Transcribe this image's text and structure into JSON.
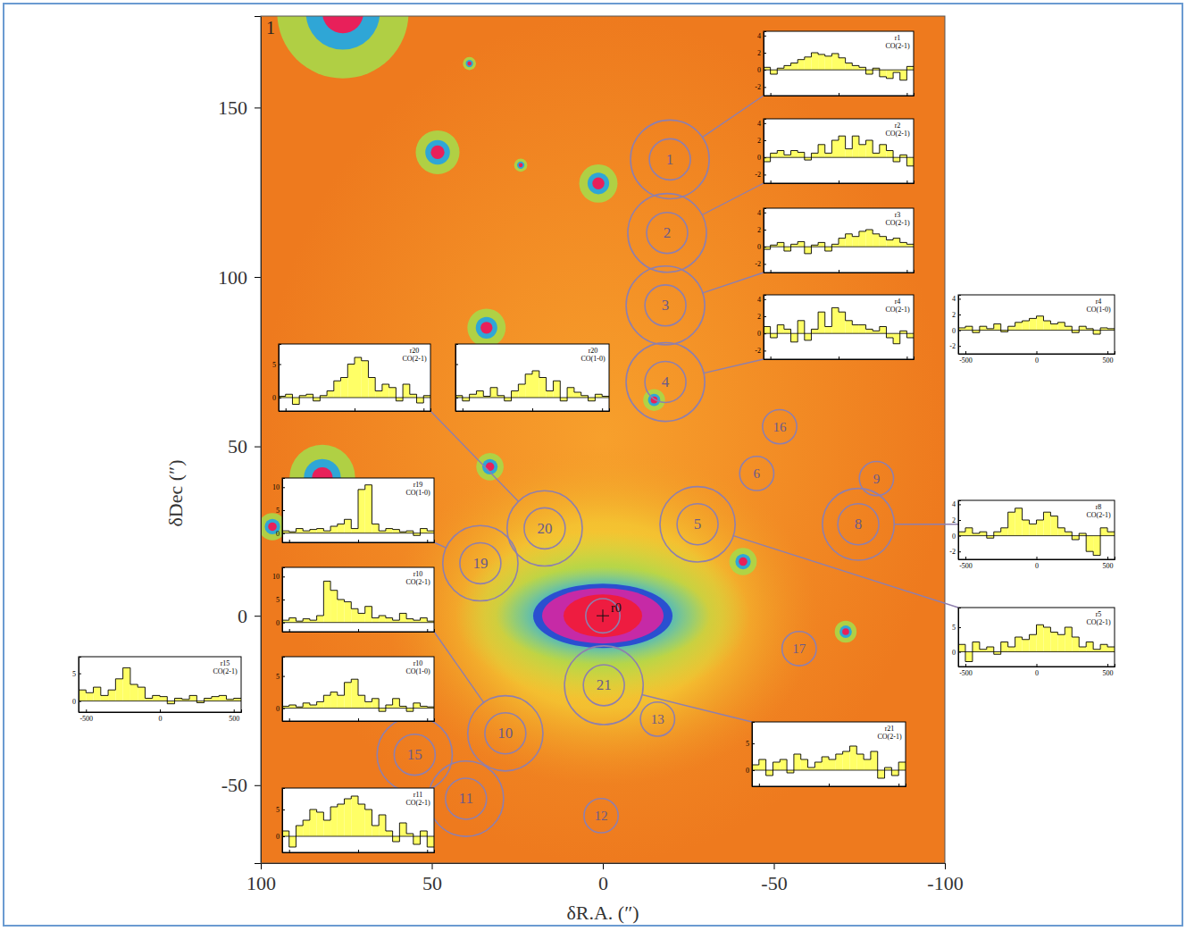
{
  "chart_data": [
    {
      "type": "map",
      "title": "1",
      "xlabel": "δR.A. (″)",
      "ylabel": "δDec (″)",
      "xlim": [
        100,
        -100
      ],
      "ylim": [
        -73,
        177
      ],
      "xticks": [
        100,
        50,
        0,
        -50,
        -100
      ],
      "yticks": [
        150,
        100,
        50,
        0,
        -50
      ],
      "color": "#8e7fae",
      "regions": [
        {
          "label": "r0",
          "x": 0,
          "y": 0,
          "radius": 5
        },
        {
          "label": "1",
          "x": -19.6,
          "y": 134.7,
          "radius": 6,
          "outer_radius": 11.5
        },
        {
          "label": "2",
          "x": -18.8,
          "y": 113,
          "radius": 6,
          "outer_radius": 11.5
        },
        {
          "label": "3",
          "x": -18.3,
          "y": 91.6,
          "radius": 6,
          "outer_radius": 11.5
        },
        {
          "label": "4",
          "x": -18.3,
          "y": 69,
          "radius": 6,
          "outer_radius": 11.5
        },
        {
          "label": "5",
          "x": -27.7,
          "y": 27,
          "radius": 6,
          "outer_radius": 11
        },
        {
          "label": "6",
          "x": -45,
          "y": 42,
          "radius": 5
        },
        {
          "label": "8",
          "x": -74.7,
          "y": 27,
          "radius": 6,
          "outer_radius": 10.5
        },
        {
          "label": "9",
          "x": -80,
          "y": 40.5,
          "radius": 5
        },
        {
          "label": "10",
          "x": 28.5,
          "y": -34.7,
          "radius": 6,
          "outer_radius": 11
        },
        {
          "label": "11",
          "x": 40,
          "y": -54,
          "radius": 6,
          "outer_radius": 11
        },
        {
          "label": "12",
          "x": 0.5,
          "y": -59,
          "radius": 5
        },
        {
          "label": "13",
          "x": -16,
          "y": -30.5,
          "radius": 5
        },
        {
          "label": "15",
          "x": 55,
          "y": -41,
          "radius": 6,
          "outer_radius": 11
        },
        {
          "label": "16",
          "x": -51.7,
          "y": 55.8,
          "radius": 5
        },
        {
          "label": "17",
          "x": -57.4,
          "y": -9.7,
          "radius": 5
        },
        {
          "label": "19",
          "x": 35.8,
          "y": 15.5,
          "radius": 6,
          "outer_radius": 11
        },
        {
          "label": "20",
          "x": 17,
          "y": 25.8,
          "radius": 6,
          "outer_radius": 11
        },
        {
          "label": "21",
          "x": -0.3,
          "y": -20.5,
          "radius": 6,
          "outer_radius": 11.5
        }
      ],
      "sources": [
        {
          "x": 48.3,
          "y": 136.8,
          "size": 4
        },
        {
          "x": 1.3,
          "y": 127.6,
          "size": 3.5
        },
        {
          "x": 34,
          "y": 85,
          "size": 3.5
        },
        {
          "x": 82,
          "y": 40.8,
          "size": 6
        },
        {
          "x": 33,
          "y": 44,
          "size": 2.5
        },
        {
          "x": -41,
          "y": 16,
          "size": 2.5
        },
        {
          "x": -71,
          "y": -4.7,
          "size": 2
        },
        {
          "x": -15,
          "y": 63.7,
          "size": 2
        },
        {
          "x": 96.6,
          "y": 26.3,
          "size": 2.5
        },
        {
          "x": 76,
          "y": 178,
          "size": 12
        },
        {
          "x": 24,
          "y": 133,
          "size": 1.2
        },
        {
          "x": 39,
          "y": 163,
          "size": 1.2
        }
      ]
    },
    {
      "type": "step",
      "title": "r1",
      "subtitle": "CO(2-1)",
      "color": "#ffff66",
      "tick_labels": "y",
      "xlim": [
        -550,
        550
      ],
      "xticks": [
        -500,
        0,
        500
      ],
      "ylim": [
        -3,
        4.5
      ],
      "yticks": [
        -2,
        0,
        2,
        4
      ],
      "x": [
        -525,
        -475,
        -425,
        -375,
        -325,
        -275,
        -225,
        -175,
        -125,
        -75,
        -25,
        25,
        75,
        125,
        175,
        225,
        275,
        325,
        375,
        425,
        475,
        525
      ],
      "values": [
        0.3,
        -0.5,
        0.2,
        0.5,
        0.8,
        1.2,
        1.5,
        2.0,
        1.8,
        1.6,
        1.9,
        1.4,
        0.8,
        0.5,
        0.3,
        -0.5,
        0.2,
        -0.8,
        -1.0,
        -0.3,
        -1.2,
        0.4
      ]
    },
    {
      "type": "step",
      "title": "r2",
      "subtitle": "CO(2-1)",
      "color": "#ffff66",
      "tick_labels": "y",
      "xlim": [
        -550,
        550
      ],
      "xticks": [
        -500,
        0,
        500
      ],
      "ylim": [
        -3,
        4.5
      ],
      "yticks": [
        -2,
        0,
        2,
        4
      ],
      "x": [
        -525,
        -475,
        -425,
        -375,
        -325,
        -275,
        -225,
        -175,
        -125,
        -75,
        -25,
        25,
        75,
        125,
        175,
        225,
        275,
        325,
        375,
        425,
        475,
        525
      ],
      "values": [
        -0.5,
        0.5,
        0.8,
        0.3,
        0.8,
        0.6,
        -0.3,
        0.5,
        1.5,
        0.5,
        2.0,
        2.5,
        1.0,
        2.5,
        1.5,
        2.0,
        0.5,
        1.5,
        0.8,
        -0.5,
        0.3,
        -1.0
      ]
    },
    {
      "type": "step",
      "title": "r3",
      "subtitle": "CO(2-1)",
      "color": "#ffff66",
      "tick_labels": "y",
      "xlim": [
        -550,
        550
      ],
      "xticks": [
        -500,
        0,
        500
      ],
      "ylim": [
        -3,
        4.5
      ],
      "yticks": [
        -2,
        0,
        2,
        4
      ],
      "x": [
        -525,
        -475,
        -425,
        -375,
        -325,
        -275,
        -225,
        -175,
        -125,
        -75,
        -25,
        25,
        75,
        125,
        175,
        225,
        275,
        325,
        375,
        425,
        475,
        525
      ],
      "values": [
        -0.3,
        0.2,
        0.5,
        -0.5,
        0.3,
        0.6,
        -0.8,
        0.2,
        0.5,
        -0.5,
        0.3,
        1.0,
        1.5,
        1.2,
        1.8,
        2.0,
        1.5,
        1.2,
        0.8,
        1.0,
        0.5,
        0.3
      ]
    },
    {
      "type": "step",
      "title": "r4",
      "subtitle": "CO(2-1)",
      "color": "#ffff66",
      "tick_labels": "y",
      "xlim": [
        -550,
        550
      ],
      "xticks": [
        -500,
        0,
        500
      ],
      "ylim": [
        -3,
        4.5
      ],
      "yticks": [
        -2,
        0,
        2,
        4
      ],
      "x": [
        -525,
        -475,
        -425,
        -375,
        -325,
        -275,
        -225,
        -175,
        -125,
        -75,
        -25,
        25,
        75,
        125,
        175,
        225,
        275,
        325,
        375,
        425,
        475,
        525
      ],
      "values": [
        0.8,
        -0.5,
        1.0,
        0.5,
        -1.0,
        1.5,
        -0.8,
        0.5,
        2.5,
        0.8,
        3.0,
        2.5,
        1.5,
        1.0,
        1.0,
        0.5,
        0.3,
        0.8,
        -0.5,
        -1.2,
        0.3,
        -0.5
      ]
    },
    {
      "type": "step",
      "title": "r4",
      "subtitle": "CO(1-0)",
      "color": "#ffff66",
      "xlim": [
        -550,
        550
      ],
      "xticks": [
        -500,
        0,
        500
      ],
      "ylim": [
        -3,
        4.5
      ],
      "yticks": [
        -2,
        0,
        2,
        4
      ],
      "x": [
        -525,
        -475,
        -425,
        -375,
        -325,
        -275,
        -225,
        -175,
        -125,
        -75,
        -25,
        25,
        75,
        125,
        175,
        225,
        275,
        325,
        375,
        425,
        475,
        525
      ],
      "values": [
        0.3,
        0.5,
        -0.3,
        0.5,
        0.2,
        0.8,
        -0.2,
        0.5,
        1.0,
        1.2,
        1.5,
        1.8,
        1.2,
        0.8,
        1.0,
        0.5,
        -0.3,
        0.5,
        0.2,
        -0.5,
        0.3,
        0.2
      ]
    },
    {
      "type": "step",
      "title": "r20",
      "subtitle": "CO(2-1)",
      "color": "#ffff66",
      "tick_labels": "y",
      "xlim": [
        -550,
        550
      ],
      "xticks": [
        -500,
        0,
        500
      ],
      "ylim": [
        -2,
        8
      ],
      "yticks": [
        0,
        5
      ],
      "x": [
        -525,
        -475,
        -425,
        -375,
        -325,
        -275,
        -225,
        -175,
        -125,
        -75,
        -25,
        25,
        75,
        125,
        175,
        225,
        275,
        325,
        375,
        425,
        475,
        525
      ],
      "values": [
        0.2,
        0.5,
        -1,
        0.3,
        0.5,
        -0.5,
        0.3,
        1.0,
        2.5,
        3.0,
        5.0,
        6.0,
        5.5,
        3.0,
        1.0,
        2.0,
        1.5,
        -0.5,
        2.0,
        0.5,
        -0.8,
        0.3
      ]
    },
    {
      "type": "step",
      "title": "r20",
      "subtitle": "CO(1-0)",
      "color": "#ffff66",
      "tick_labels": false,
      "xlim": [
        -550,
        550
      ],
      "xticks": [
        -500,
        0,
        500
      ],
      "ylim": [
        -2,
        8
      ],
      "yticks": [
        0,
        5
      ],
      "x": [
        -525,
        -475,
        -425,
        -375,
        -325,
        -275,
        -225,
        -175,
        -125,
        -75,
        -25,
        25,
        75,
        125,
        175,
        225,
        275,
        325,
        375,
        425,
        475,
        525
      ],
      "values": [
        0.3,
        -0.5,
        0.5,
        1.0,
        0.2,
        1.5,
        0.3,
        -0.5,
        1.0,
        2.0,
        3.5,
        4.0,
        3.0,
        1.0,
        2.5,
        -0.5,
        1.5,
        0.8,
        0.3,
        -0.5,
        0.5,
        0.2
      ]
    },
    {
      "type": "step",
      "title": "r19",
      "subtitle": "CO(1-0)",
      "color": "#ffff66",
      "tick_labels": "y",
      "xlim": [
        -550,
        550
      ],
      "xticks": [
        -500,
        0,
        500
      ],
      "ylim": [
        -2,
        12
      ],
      "yticks": [
        0,
        5,
        10
      ],
      "x": [
        -525,
        -475,
        -425,
        -375,
        -325,
        -275,
        -225,
        -175,
        -125,
        -75,
        -25,
        25,
        75,
        125,
        175,
        225,
        275,
        325,
        375,
        425,
        475,
        525
      ],
      "values": [
        0.5,
        0.3,
        1.0,
        0.5,
        0.8,
        1.0,
        0.5,
        1.5,
        2.0,
        3.0,
        1.0,
        9.5,
        10.5,
        2.0,
        0.5,
        1.0,
        0.8,
        0.3,
        0.5,
        -0.5,
        1.0,
        0.5
      ]
    },
    {
      "type": "step",
      "title": "r10",
      "subtitle": "CO(2-1)",
      "color": "#ffff66",
      "tick_labels": "y",
      "xlim": [
        -550,
        550
      ],
      "xticks": [
        -500,
        0,
        500
      ],
      "ylim": [
        -2,
        12
      ],
      "yticks": [
        0,
        5,
        10
      ],
      "x": [
        -525,
        -475,
        -425,
        -375,
        -325,
        -275,
        -225,
        -175,
        -125,
        -75,
        -25,
        25,
        75,
        125,
        175,
        225,
        275,
        325,
        375,
        425,
        475,
        525
      ],
      "values": [
        0.5,
        1.0,
        0.3,
        0.8,
        0.5,
        1.5,
        9.0,
        7.0,
        5.0,
        4.5,
        3.0,
        2.0,
        3.5,
        1.0,
        1.5,
        1.0,
        0.5,
        2.0,
        0.8,
        0.5,
        1.0,
        0.3
      ]
    },
    {
      "type": "step",
      "title": "r10",
      "subtitle": "CO(1-0)",
      "color": "#ffff66",
      "tick_labels": "y",
      "xlim": [
        -550,
        550
      ],
      "xticks": [
        -500,
        0,
        500
      ],
      "ylim": [
        -2,
        8
      ],
      "yticks": [
        0,
        5
      ],
      "x": [
        -525,
        -475,
        -425,
        -375,
        -325,
        -275,
        -225,
        -175,
        -125,
        -75,
        -25,
        25,
        75,
        125,
        175,
        225,
        275,
        325,
        375,
        425,
        475,
        525
      ],
      "values": [
        0.3,
        0.5,
        0.2,
        0.8,
        0.5,
        1.0,
        2.0,
        2.5,
        2.0,
        4.0,
        4.5,
        2.0,
        1.0,
        1.5,
        -0.5,
        0.5,
        1.5,
        0.3,
        -0.5,
        0.8,
        0.3,
        0.2
      ]
    },
    {
      "type": "step",
      "title": "r15",
      "subtitle": "CO(2-1)",
      "color": "#ffff66",
      "xlim": [
        -550,
        550
      ],
      "xticks": [
        -500,
        0,
        500
      ],
      "ylim": [
        -2,
        8
      ],
      "yticks": [
        0,
        5
      ],
      "x": [
        -525,
        -475,
        -425,
        -375,
        -325,
        -275,
        -225,
        -175,
        -125,
        -75,
        -25,
        25,
        75,
        125,
        175,
        225,
        275,
        325,
        375,
        425,
        475,
        525
      ],
      "values": [
        2.0,
        1.5,
        2.5,
        1.0,
        2.0,
        4.0,
        6.0,
        3.0,
        2.5,
        0.5,
        1.0,
        0.8,
        -0.5,
        0.5,
        0.3,
        1.0,
        -0.3,
        0.5,
        0.8,
        1.0,
        0.3,
        0.5
      ]
    },
    {
      "type": "step",
      "title": "r11",
      "subtitle": "CO(2-1)",
      "color": "#ffff66",
      "tick_labels": "y",
      "xlim": [
        -550,
        550
      ],
      "xticks": [
        -500,
        0,
        500
      ],
      "ylim": [
        -3,
        9
      ],
      "yticks": [
        0,
        5
      ],
      "x": [
        -525,
        -475,
        -425,
        -375,
        -325,
        -275,
        -225,
        -175,
        -125,
        -75,
        -25,
        25,
        75,
        125,
        175,
        225,
        275,
        325,
        375,
        425,
        475,
        525
      ],
      "values": [
        1.0,
        -2.0,
        2.0,
        3.0,
        5.0,
        4.5,
        3.0,
        5.5,
        6.0,
        7.0,
        7.5,
        6.0,
        5.0,
        2.0,
        4.0,
        1.0,
        -1.0,
        2.5,
        0.5,
        -1.5,
        1.0,
        -2.0
      ]
    },
    {
      "type": "step",
      "title": "r8",
      "subtitle": "CO(2-1)",
      "color": "#ffff66",
      "xlim": [
        -550,
        550
      ],
      "xticks": [
        -500,
        0,
        500
      ],
      "ylim": [
        -3,
        4.5
      ],
      "yticks": [
        -2,
        0,
        2,
        4
      ],
      "x": [
        -525,
        -475,
        -425,
        -375,
        -325,
        -275,
        -225,
        -175,
        -125,
        -75,
        -25,
        25,
        75,
        125,
        175,
        225,
        275,
        325,
        375,
        425,
        475,
        525
      ],
      "values": [
        0.5,
        1.0,
        0.3,
        0.5,
        -0.3,
        0.5,
        1.0,
        3.0,
        3.5,
        2.0,
        1.5,
        2.0,
        3.0,
        2.5,
        1.0,
        0.5,
        -0.5,
        0.3,
        -2.0,
        -2.5,
        1.0,
        0.5
      ]
    },
    {
      "type": "step",
      "title": "r5",
      "subtitle": "CO(2-1)",
      "color": "#ffff66",
      "xlim": [
        -550,
        550
      ],
      "xticks": [
        -500,
        0,
        500
      ],
      "ylim": [
        -3,
        9
      ],
      "yticks": [
        0,
        5
      ],
      "x": [
        -525,
        -475,
        -425,
        -375,
        -325,
        -275,
        -225,
        -175,
        -125,
        -75,
        -25,
        25,
        75,
        125,
        175,
        225,
        275,
        325,
        375,
        425,
        475,
        525
      ],
      "values": [
        1.5,
        -2.0,
        2.0,
        0.5,
        1.0,
        -0.5,
        2.0,
        1.0,
        3.0,
        2.5,
        3.5,
        5.5,
        5.0,
        4.0,
        3.5,
        5.0,
        3.0,
        1.0,
        2.0,
        0.5,
        1.5,
        1.0
      ]
    },
    {
      "type": "step",
      "title": "r21",
      "subtitle": "CO(2-1)",
      "color": "#ffff66",
      "tick_labels": "y",
      "xlim": [
        -550,
        550
      ],
      "xticks": [
        -500,
        0,
        500
      ],
      "ylim": [
        -3,
        9
      ],
      "yticks": [
        0,
        5
      ],
      "x": [
        -525,
        -475,
        -425,
        -375,
        -325,
        -275,
        -225,
        -175,
        -125,
        -75,
        -25,
        25,
        75,
        125,
        175,
        225,
        275,
        325,
        375,
        425,
        475,
        525
      ],
      "values": [
        1.0,
        2.0,
        -1.0,
        1.5,
        2.0,
        -0.5,
        3.0,
        2.0,
        0.5,
        1.5,
        2.5,
        2.0,
        3.0,
        3.5,
        4.5,
        3.0,
        2.0,
        3.5,
        -1.5,
        0.5,
        -1.0,
        1.5
      ]
    }
  ]
}
